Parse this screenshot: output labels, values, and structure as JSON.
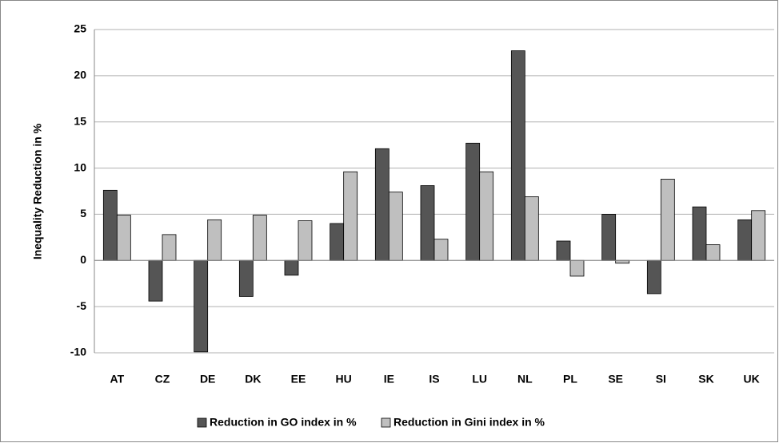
{
  "chart_data": {
    "type": "bar",
    "y_label": "Inequality Reduction in %",
    "categories": [
      "AT",
      "CZ",
      "DE",
      "DK",
      "EE",
      "HU",
      "IE",
      "IS",
      "LU",
      "NL",
      "PL",
      "SE",
      "SI",
      "SK",
      "UK"
    ],
    "series": [
      {
        "name": "Reduction in GO index in %",
        "color": "#555555",
        "values": [
          7.6,
          -4.4,
          -9.9,
          -3.9,
          -1.6,
          4.0,
          12.1,
          8.1,
          12.7,
          22.7,
          2.1,
          5.0,
          -3.6,
          5.8,
          4.4
        ]
      },
      {
        "name": "Reduction in Gini index in %",
        "color": "#bfbfbf",
        "values": [
          4.9,
          2.8,
          4.4,
          4.9,
          4.3,
          9.6,
          7.4,
          2.3,
          9.6,
          6.9,
          -1.7,
          -0.3,
          8.8,
          1.7,
          5.4
        ]
      }
    ],
    "ylim": [
      -10,
      25
    ],
    "yticks": [
      -10,
      -5,
      0,
      5,
      10,
      15,
      20,
      25
    ],
    "grid": true,
    "legend": "bottom"
  }
}
